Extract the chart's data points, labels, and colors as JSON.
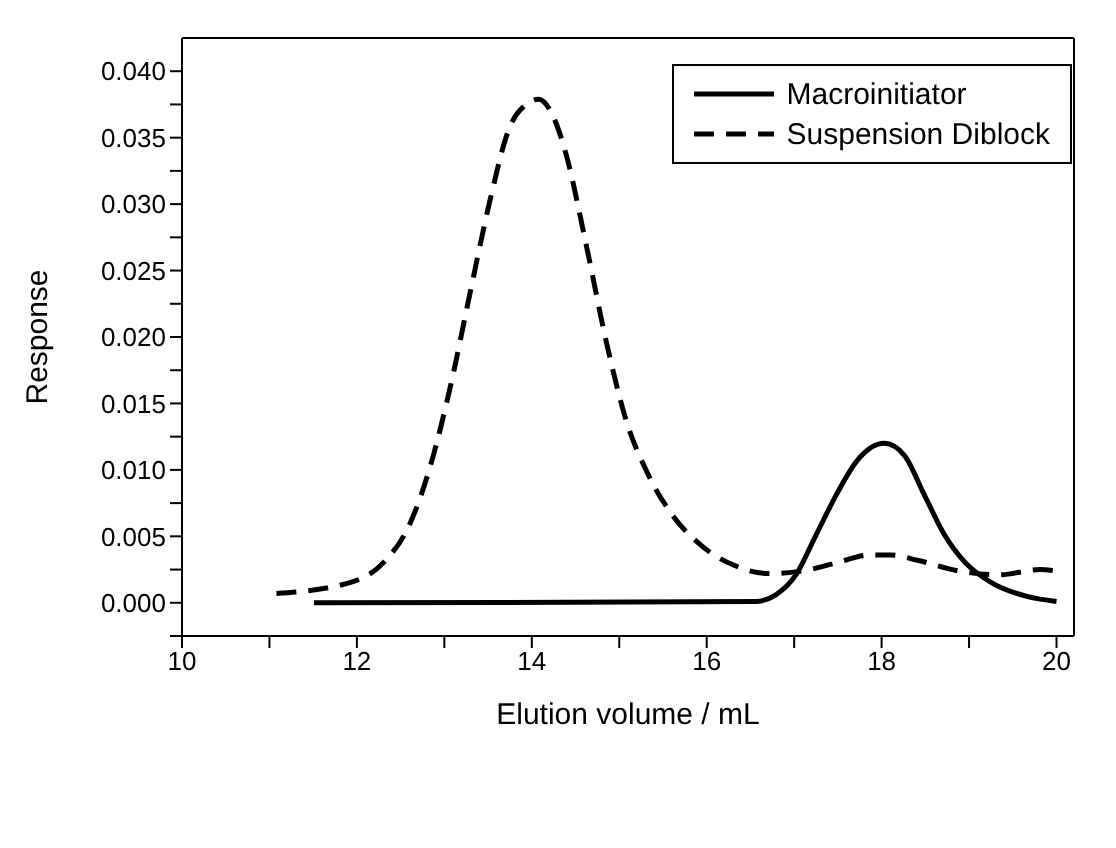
{
  "chart_data": {
    "type": "line",
    "xlabel": "Elution volume / mL",
    "ylabel": "Response",
    "xlim": [
      10,
      20.2
    ],
    "xticks": [
      10,
      {
        "value": 11,
        "label": null
      },
      12,
      {
        "value": 13,
        "label": null
      },
      14,
      {
        "value": 15,
        "label": null
      },
      16,
      {
        "value": 17,
        "label": null
      },
      18,
      {
        "value": 19,
        "label": null
      },
      20
    ],
    "ylim": [
      -0.0025,
      0.0425
    ],
    "yticks": [
      {
        "value": -0.0025,
        "label": null
      },
      "0.000",
      {
        "value": 0.0025,
        "label": null
      },
      {
        "value": 0.005,
        "label": "0.005"
      },
      {
        "value": 0.0075,
        "label": null
      },
      {
        "value": 0.01,
        "label": "0.010"
      },
      {
        "value": 0.0125,
        "label": null
      },
      {
        "value": 0.015,
        "label": "0.015"
      },
      {
        "value": 0.0175,
        "label": null
      },
      {
        "value": 0.02,
        "label": "0.020"
      },
      {
        "value": 0.0225,
        "label": null
      },
      {
        "value": 0.025,
        "label": "0.025"
      },
      {
        "value": 0.0275,
        "label": null
      },
      {
        "value": 0.03,
        "label": "0.030"
      },
      {
        "value": 0.0325,
        "label": null
      },
      {
        "value": 0.035,
        "label": "0.035"
      },
      {
        "value": 0.0375,
        "label": null
      },
      {
        "value": 0.04,
        "label": "0.040"
      }
    ],
    "legend": "top right",
    "marker": "none",
    "series": [
      {
        "name": "Macroinitiator",
        "color": "#000000",
        "line_style": "solid",
        "x": [
          11.51,
          16.56,
          16.79,
          17.02,
          17.25,
          17.48,
          17.72,
          18.03,
          18.26,
          18.49,
          18.72,
          18.96,
          19.26,
          19.65,
          20.0
        ],
        "values": [
          0,
          0.0001,
          0.0006,
          0.0021,
          0.0051,
          0.0081,
          0.0107,
          0.012,
          0.0111,
          0.0081,
          0.0051,
          0.003,
          0.0015,
          0.0005,
          0.0001
        ]
      },
      {
        "name": "Suspension Diblock",
        "color": "#000000",
        "line_style": "dashed",
        "x": [
          11.08,
          11.91,
          12.3,
          12.61,
          12.84,
          13.07,
          13.3,
          13.54,
          13.73,
          13.96,
          14.08,
          14.23,
          14.39,
          14.62,
          14.85,
          15.08,
          15.32,
          15.63,
          15.94,
          16.32,
          16.71,
          17.1,
          17.48,
          17.87,
          18.1,
          18.41,
          18.88,
          19.34,
          19.81,
          20.0
        ],
        "values": [
          0.0007,
          0.0015,
          0.003,
          0.006,
          0.0103,
          0.0163,
          0.0235,
          0.0308,
          0.0355,
          0.0376,
          0.0379,
          0.0368,
          0.0338,
          0.027,
          0.0197,
          0.0137,
          0.0098,
          0.0064,
          0.0043,
          0.0028,
          0.0022,
          0.0024,
          0.003,
          0.0036,
          0.0036,
          0.0032,
          0.0024,
          0.0021,
          0.0025,
          0.0024
        ]
      }
    ]
  }
}
